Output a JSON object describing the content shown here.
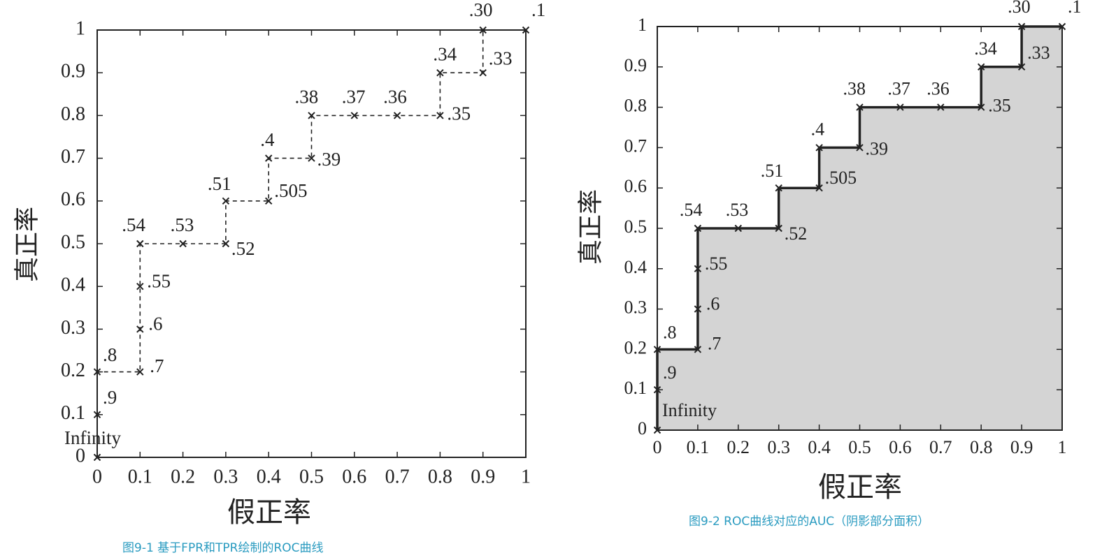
{
  "chart_data": [
    {
      "type": "line",
      "style": "dashed",
      "fill": false,
      "color": "#222222",
      "x": [
        0,
        0,
        0,
        0.1,
        0.1,
        0.1,
        0.1,
        0.2,
        0.3,
        0.3,
        0.4,
        0.4,
        0.5,
        0.5,
        0.6,
        0.7,
        0.8,
        0.8,
        0.9,
        0.9,
        1
      ],
      "series": [
        {
          "values": [
            0,
            0.1,
            0.2,
            0.2,
            0.3,
            0.4,
            0.5,
            0.5,
            0.5,
            0.6,
            0.6,
            0.7,
            0.7,
            0.8,
            0.8,
            0.8,
            0.8,
            0.9,
            0.9,
            1,
            1
          ]
        }
      ],
      "point_labels": [
        "Infinity",
        ".9",
        ".8",
        ".7",
        ".6",
        ".55",
        ".54",
        ".53",
        ".52",
        ".51",
        ".505",
        ".4",
        ".39",
        ".38",
        ".37",
        ".36",
        ".35",
        ".34",
        ".33",
        ".30",
        ".1"
      ],
      "xlabel": "假正率",
      "ylabel": "真正率",
      "caption": "图9-1 基于FPR和TPR绘制的ROC曲线",
      "xlim": [
        0,
        1
      ],
      "ylim": [
        0,
        1
      ],
      "xticks": [
        0,
        0.1,
        0.2,
        0.3,
        0.4,
        0.5,
        0.6,
        0.7,
        0.8,
        0.9,
        1
      ],
      "yticks": [
        0,
        0.1,
        0.2,
        0.3,
        0.4,
        0.5,
        0.6,
        0.7,
        0.8,
        0.9,
        1
      ]
    },
    {
      "type": "line",
      "style": "solid",
      "fill": true,
      "fill_color": "#d4d4d4",
      "color": "#222222",
      "x": [
        0,
        0,
        0,
        0.1,
        0.1,
        0.1,
        0.1,
        0.2,
        0.3,
        0.3,
        0.4,
        0.4,
        0.5,
        0.5,
        0.6,
        0.7,
        0.8,
        0.8,
        0.9,
        0.9,
        1
      ],
      "series": [
        {
          "values": [
            0,
            0.1,
            0.2,
            0.2,
            0.3,
            0.4,
            0.5,
            0.5,
            0.5,
            0.6,
            0.6,
            0.7,
            0.7,
            0.8,
            0.8,
            0.8,
            0.8,
            0.9,
            0.9,
            1,
            1
          ]
        }
      ],
      "point_labels": [
        "Infinity",
        ".9",
        ".8",
        ".7",
        ".6",
        ".55",
        ".54",
        ".53",
        ".52",
        ".51",
        ".505",
        ".4",
        ".39",
        ".38",
        ".37",
        ".36",
        ".35",
        ".34",
        ".33",
        ".30",
        ".1"
      ],
      "xlabel": "假正率",
      "ylabel": "真正率",
      "caption": "图9-2 ROC曲线对应的AUC（阴影部分面积）",
      "xlim": [
        0,
        1
      ],
      "ylim": [
        0,
        1
      ],
      "xticks": [
        0,
        0.1,
        0.2,
        0.3,
        0.4,
        0.5,
        0.6,
        0.7,
        0.8,
        0.9,
        1
      ],
      "yticks": [
        0,
        0.1,
        0.2,
        0.3,
        0.4,
        0.5,
        0.6,
        0.7,
        0.8,
        0.9,
        1
      ]
    }
  ]
}
